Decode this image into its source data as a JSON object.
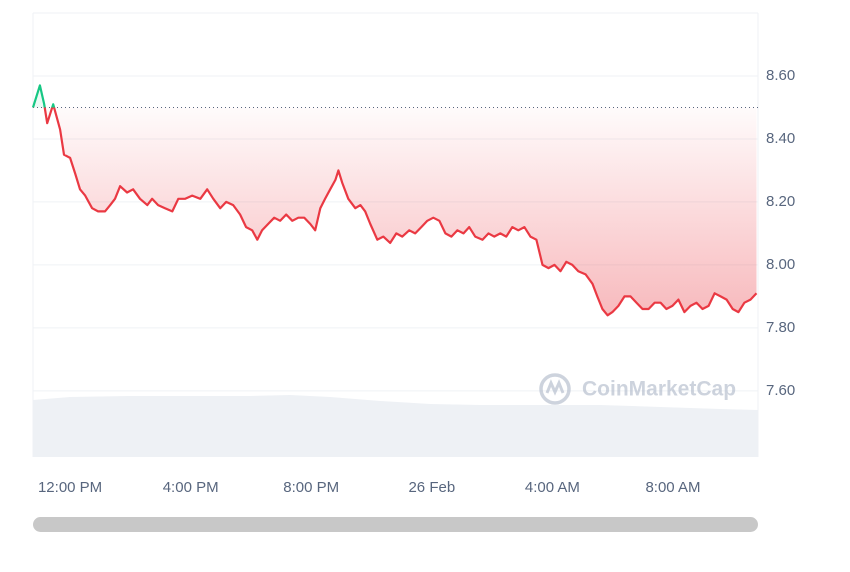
{
  "chart_data": {
    "type": "line",
    "x": [
      10.77,
      11.0,
      11.14,
      11.24,
      11.44,
      11.67,
      11.8,
      12.0,
      12.17,
      12.33,
      12.5,
      12.73,
      12.93,
      13.16,
      13.33,
      13.49,
      13.66,
      13.89,
      14.09,
      14.32,
      14.56,
      14.72,
      14.92,
      15.15,
      15.39,
      15.59,
      15.82,
      16.05,
      16.32,
      16.55,
      16.75,
      16.98,
      17.18,
      17.41,
      17.64,
      17.84,
      18.04,
      18.21,
      18.37,
      18.57,
      18.77,
      18.97,
      19.17,
      19.37,
      19.57,
      19.77,
      19.97,
      20.13,
      20.3,
      20.46,
      20.63,
      20.8,
      20.9,
      21.03,
      21.23,
      21.46,
      21.63,
      21.79,
      21.96,
      22.19,
      22.39,
      22.62,
      22.82,
      23.02,
      23.25,
      23.45,
      23.65,
      23.85,
      24.05,
      24.25,
      24.45,
      24.65,
      24.85,
      25.05,
      25.24,
      25.44,
      25.68,
      25.88,
      26.07,
      26.27,
      26.47,
      26.67,
      26.87,
      27.07,
      27.27,
      27.47,
      27.67,
      27.87,
      28.07,
      28.27,
      28.46,
      28.66,
      28.86,
      29.1,
      29.33,
      29.49,
      29.66,
      29.83,
      29.99,
      30.19,
      30.39,
      30.59,
      30.79,
      30.99,
      31.19,
      31.39,
      31.59,
      31.78,
      31.98,
      32.18,
      32.38,
      32.58,
      32.78,
      32.98,
      33.18,
      33.38,
      33.58,
      33.78,
      33.98,
      34.17,
      34.37,
      34.57,
      34.77
    ],
    "series": [
      {
        "up_color": "#16c784",
        "color": "#ea3943",
        "values": [
          8.5,
          8.57,
          8.51,
          8.45,
          8.51,
          8.43,
          8.35,
          8.34,
          8.29,
          8.24,
          8.22,
          8.18,
          8.17,
          8.17,
          8.19,
          8.21,
          8.25,
          8.23,
          8.24,
          8.21,
          8.19,
          8.21,
          8.19,
          8.18,
          8.17,
          8.21,
          8.21,
          8.22,
          8.21,
          8.24,
          8.21,
          8.18,
          8.2,
          8.19,
          8.16,
          8.12,
          8.11,
          8.08,
          8.11,
          8.13,
          8.15,
          8.14,
          8.16,
          8.14,
          8.15,
          8.15,
          8.13,
          8.11,
          8.18,
          8.21,
          8.24,
          8.27,
          8.3,
          8.26,
          8.21,
          8.18,
          8.19,
          8.17,
          8.13,
          8.08,
          8.09,
          8.07,
          8.1,
          8.09,
          8.11,
          8.1,
          8.12,
          8.14,
          8.15,
          8.14,
          8.1,
          8.09,
          8.11,
          8.1,
          8.12,
          8.09,
          8.08,
          8.1,
          8.09,
          8.1,
          8.09,
          8.12,
          8.11,
          8.12,
          8.09,
          8.08,
          8.0,
          7.99,
          8.0,
          7.98,
          8.01,
          8.0,
          7.98,
          7.97,
          7.94,
          7.9,
          7.86,
          7.84,
          7.85,
          7.87,
          7.9,
          7.9,
          7.88,
          7.86,
          7.86,
          7.88,
          7.88,
          7.86,
          7.87,
          7.89,
          7.85,
          7.87,
          7.88,
          7.86,
          7.87,
          7.91,
          7.9,
          7.89,
          7.86,
          7.85,
          7.88,
          7.89,
          7.91
        ]
      }
    ],
    "baseline": 8.5,
    "volume": {
      "color": "#eef1f5",
      "x": [
        10.77,
        12.0,
        13.99,
        15.98,
        17.97,
        19.3,
        20.63,
        22.29,
        23.95,
        25.61,
        27.6,
        29.59,
        31.59,
        33.58,
        34.82
      ],
      "values": [
        57,
        60,
        61,
        61,
        61,
        62,
        60,
        56,
        53,
        52,
        52,
        52,
        50,
        48,
        47
      ]
    },
    "xlim": [
      10.77,
      34.82
    ],
    "xticks": [
      {
        "value": 12,
        "label": "12:00 PM"
      },
      {
        "value": 16,
        "label": "4:00 PM"
      },
      {
        "value": 20,
        "label": "8:00 PM"
      },
      {
        "value": 24,
        "label": "26 Feb"
      },
      {
        "value": 28,
        "label": "4:00 AM"
      },
      {
        "value": 32,
        "label": "8:00 AM"
      }
    ],
    "ylim": [
      7.39,
      8.8
    ],
    "yticks": [
      {
        "value": 7.6,
        "label": "7.60"
      },
      {
        "value": 7.8,
        "label": "7.80"
      },
      {
        "value": 8.0,
        "label": "8.00"
      },
      {
        "value": 8.2,
        "label": "8.20"
      },
      {
        "value": 8.4,
        "label": "8.40"
      },
      {
        "value": 8.6,
        "label": "8.60"
      }
    ],
    "grid": true,
    "watermark": "CoinMarketCap"
  }
}
